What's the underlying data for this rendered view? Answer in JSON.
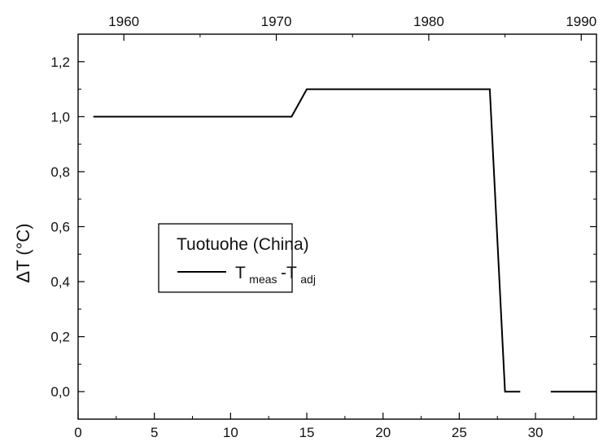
{
  "chart_data": {
    "type": "line",
    "title": "",
    "xlabel": "",
    "ylabel": "ΔT (°C)",
    "xlim": [
      0,
      34
    ],
    "ylim": [
      -0.1,
      1.3
    ],
    "x_ticks": [
      "0",
      "5",
      "10",
      "15",
      "20",
      "25",
      "30"
    ],
    "y_ticks": [
      "0,0",
      "0,2",
      "0,4",
      "0,6",
      "0,8",
      "1,0",
      "1,2"
    ],
    "top_axis_ticks": [
      "1960",
      "1970",
      "1980",
      "1990"
    ],
    "grid": false,
    "legend": {
      "title": "Tuotuohe (China)",
      "position": "center-left",
      "entry_main": "T",
      "entry_sub1": "meas",
      "entry_dash": "-T",
      "entry_sub2": "adj"
    },
    "series": [
      {
        "name": "Tmeas-Tadj",
        "color": "#000000",
        "segments": [
          {
            "x": [
              1,
              14,
              15,
              27,
              28,
              29
            ],
            "y": [
              1.0,
              1.0,
              1.1,
              1.1,
              0.0,
              0.0
            ]
          },
          {
            "x": [
              31,
              34
            ],
            "y": [
              0.0,
              0.0
            ]
          }
        ]
      }
    ]
  }
}
